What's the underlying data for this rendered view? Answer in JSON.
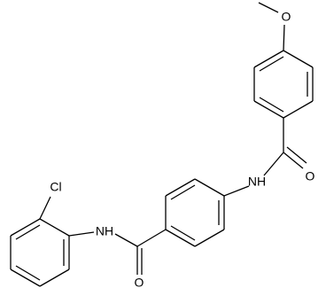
{
  "atoms": {
    "methoxy_o": "O",
    "carbonyl_o_top": "O",
    "amide_nh_top": "NH",
    "amide_nh_bottom": "NH",
    "carbonyl_o_bottom": "O",
    "chloro": "Cl"
  }
}
